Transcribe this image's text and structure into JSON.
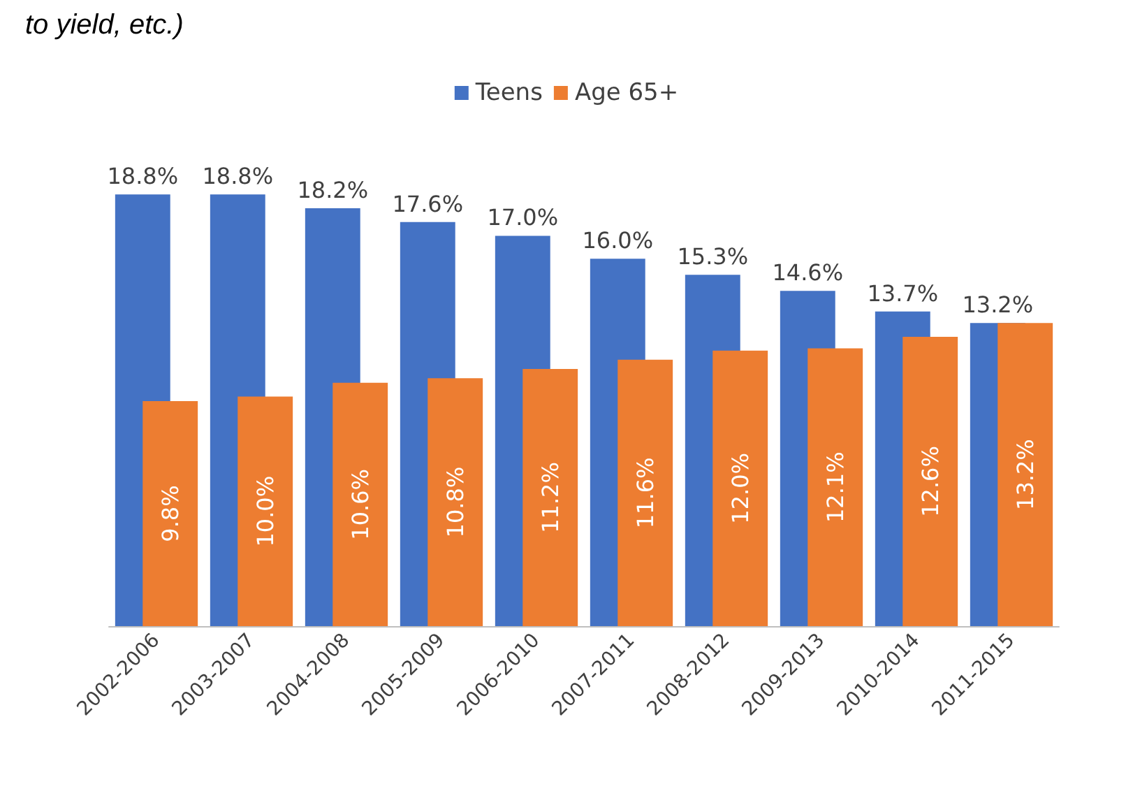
{
  "chart_data": {
    "type": "bar",
    "annotations": [
      "to yield, etc.)"
    ],
    "categories": [
      "2002-2006",
      "2003-2007",
      "2004-2008",
      "2005-2009",
      "2006-2010",
      "2007-2011",
      "2008-2012",
      "2009-2013",
      "2010-2014",
      "2011-2015"
    ],
    "series": [
      {
        "name": "Teens",
        "color": "#4472c4",
        "values": [
          18.8,
          18.8,
          18.2,
          17.6,
          17.0,
          16.0,
          15.3,
          14.6,
          13.7,
          13.2
        ],
        "value_labels": [
          "18.8%",
          "18.8%",
          "18.2%",
          "17.6%",
          "17.0%",
          "16.0%",
          "15.3%",
          "14.6%",
          "13.7%",
          "13.2%"
        ]
      },
      {
        "name": "Age 65+",
        "color": "#ed7d31",
        "values": [
          9.8,
          10.0,
          10.6,
          10.8,
          11.2,
          11.6,
          12.0,
          12.1,
          12.6,
          13.2
        ],
        "value_labels": [
          "9.8%",
          "10.0%",
          "10.6%",
          "10.8%",
          "11.2%",
          "11.6%",
          "12.0%",
          "12.1%",
          "12.6%",
          "13.2%"
        ]
      }
    ],
    "legend": "top",
    "grid": false
  }
}
